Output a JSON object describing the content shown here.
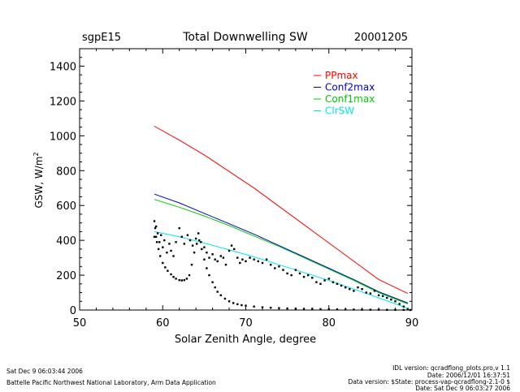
{
  "header": {
    "site": "sgpE15",
    "title": "Total Downwelling SW",
    "date": "20001205"
  },
  "chart_data": {
    "type": "line",
    "xlabel": "Solar Zenith Angle, degree",
    "ylabel_main": "GSW, W/m",
    "ylabel_sup": "2",
    "xlim": [
      50,
      90
    ],
    "ylim": [
      0,
      1500
    ],
    "xticks": [
      "50",
      "60",
      "70",
      "80",
      "90"
    ],
    "yticks": [
      "0",
      "200",
      "400",
      "600",
      "800",
      "1000",
      "1200",
      "1400"
    ],
    "legend_position": "top-right",
    "series": [
      {
        "name": "PPmax",
        "color": "#ff0000",
        "x": [
          59,
          62,
          65,
          68,
          71,
          74,
          77,
          80,
          83,
          86,
          89.5
        ],
        "y": [
          1055,
          975,
          890,
          795,
          700,
          595,
          490,
          385,
          280,
          175,
          95
        ]
      },
      {
        "name": "Conf2max",
        "color": "#0000cc",
        "x": [
          59,
          62,
          65,
          68,
          71,
          74,
          77,
          80,
          83,
          86,
          89.5
        ],
        "y": [
          665,
          615,
          555,
          495,
          435,
          370,
          305,
          240,
          175,
          105,
          40
        ]
      },
      {
        "name": "Conf1max",
        "color": "#00cc00",
        "x": [
          59,
          62,
          65,
          68,
          71,
          74,
          77,
          80,
          83,
          86,
          89.5
        ],
        "y": [
          635,
          590,
          540,
          485,
          425,
          365,
          300,
          235,
          170,
          100,
          35
        ]
      },
      {
        "name": "ClrSW",
        "color": "#00e5ee",
        "x": [
          59,
          62,
          65,
          68,
          71,
          74,
          77,
          80,
          83,
          86,
          89.5
        ],
        "y": [
          450,
          420,
          385,
          345,
          305,
          260,
          215,
          170,
          120,
          70,
          10
        ]
      }
    ],
    "measured": {
      "color": "#000000",
      "x": [
        59.0,
        59.1,
        59.2,
        59.3,
        59.5,
        59.7,
        60.0,
        60.3,
        60.6,
        61.0,
        61.3,
        61.6,
        62.0,
        62.3,
        62.6,
        62.9,
        63.2,
        63.5,
        63.8,
        64.1,
        64.4,
        64.7,
        65.0,
        65.3,
        65.6,
        66.0,
        66.3,
        66.6,
        67.0,
        67.5,
        68.0,
        68.5,
        69.0,
        69.5,
        70.0,
        71.0,
        72.0,
        73.0,
        74.0,
        75.0,
        76.0,
        77.0,
        78.0,
        79.0,
        80.0,
        81.0,
        82.0,
        83.0,
        84.0,
        85.0,
        86.0,
        87.0,
        88.0,
        89.0,
        89.8,
        59.0,
        59.2,
        59.4,
        59.6,
        59.8,
        60.0,
        60.2,
        60.5,
        60.8,
        61.0,
        61.3,
        61.6,
        62.0,
        62.3,
        62.6,
        63.0,
        63.3,
        63.6,
        64.0,
        64.3,
        64.6,
        65.0,
        65.3,
        65.6,
        66.0,
        66.3,
        66.6,
        67.0,
        67.3,
        67.6,
        68.0,
        68.3,
        68.6,
        69.0,
        69.3,
        69.6,
        70.0,
        70.5,
        71.0,
        71.5,
        72.0,
        72.5,
        73.0,
        73.5,
        74.0,
        74.5,
        75.0,
        75.5,
        76.0,
        76.5,
        77.0,
        77.5,
        78.0,
        78.5,
        79.0,
        79.5,
        80.0,
        80.5,
        81.0,
        81.5,
        82.0,
        82.5,
        83.0,
        83.5,
        84.0,
        84.5,
        85.0,
        85.5,
        86.0,
        86.5,
        87.0,
        87.5,
        88.0,
        88.5,
        89.0,
        89.5
      ],
      "y": [
        510,
        470,
        420,
        390,
        350,
        310,
        270,
        245,
        225,
        205,
        190,
        180,
        172,
        170,
        172,
        180,
        200,
        260,
        330,
        380,
        400,
        350,
        290,
        240,
        200,
        160,
        130,
        105,
        85,
        65,
        50,
        40,
        33,
        28,
        25,
        20,
        16,
        13,
        11,
        9,
        8,
        7,
        6,
        5,
        4,
        4,
        3,
        3,
        2,
        2,
        2,
        1,
        1,
        1,
        0,
        420,
        480,
        440,
        390,
        430,
        360,
        400,
        330,
        380,
        340,
        310,
        390,
        470,
        420,
        380,
        430,
        400,
        370,
        410,
        440,
        390,
        360,
        330,
        300,
        320,
        290,
        280,
        310,
        300,
        260,
        340,
        370,
        350,
        300,
        270,
        290,
        280,
        300,
        290,
        280,
        270,
        290,
        260,
        240,
        250,
        230,
        210,
        200,
        230,
        210,
        190,
        200,
        185,
        160,
        150,
        170,
        180,
        160,
        150,
        140,
        130,
        120,
        110,
        130,
        120,
        100,
        95,
        110,
        85,
        80,
        70,
        60,
        50,
        35,
        20,
        5
      ]
    }
  },
  "footer": {
    "left_line1": "Sat Dec  9 06:03:44 2006",
    "left_line2": "Battelle Pacific Northwest National Laboratory, Arm Data Application",
    "right_line1": "IDL version: qcradflong_plots.pro,v 1.1",
    "right_line2": "Date: 2006/12/01 16:37:51",
    "right_line3": "Data version: $State: process-vap-qcradflong-2.1-0 $",
    "right_line4": "Date: Sat Dec  9 06:03:27 2006"
  }
}
